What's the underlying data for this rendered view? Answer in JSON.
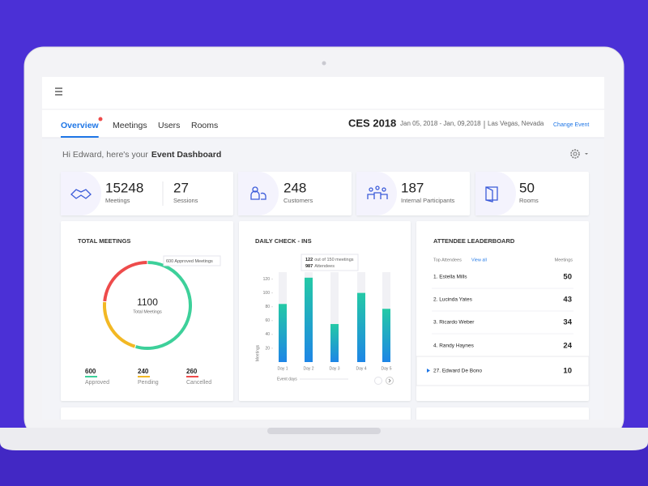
{
  "nav": {
    "tabs": [
      "Overview",
      "Meetings",
      "Users",
      "Rooms"
    ],
    "active": 0
  },
  "event": {
    "name": "CES 2018",
    "dates": "Jan 05, 2018 - Jan, 09,2018",
    "location": "Las Vegas, Nevada",
    "change": "Change Event"
  },
  "greeting": {
    "text": "Hi Edward, here's your",
    "emphasis": "Event Dashboard"
  },
  "stats": [
    {
      "items": [
        {
          "value": 15248,
          "label": "Meetings"
        },
        {
          "value": 27,
          "label": "Sessions"
        }
      ]
    },
    {
      "items": [
        {
          "value": 248,
          "label": "Customers"
        }
      ]
    },
    {
      "items": [
        {
          "value": 187,
          "label": "Internal Participants"
        }
      ]
    },
    {
      "items": [
        {
          "value": 50,
          "label": "Rooms"
        }
      ]
    }
  ],
  "total_meetings": {
    "title": "TOTAL MEETINGS",
    "total": 1100,
    "total_label": "Total Meetings",
    "tooltip": "600 Approved Meetings",
    "segments": [
      {
        "name": "Approved",
        "value": 600,
        "color": "#3dd09a"
      },
      {
        "name": "Pending",
        "value": 240,
        "color": "#f2b824"
      },
      {
        "name": "Cancelled",
        "value": 260,
        "color": "#ee4b4b"
      }
    ]
  },
  "daily_checkins": {
    "type": "bar",
    "title": "DAILY CHECK - INS",
    "categories": [
      "Day 1",
      "Day 2",
      "Day 3",
      "Day 4",
      "Day 5"
    ],
    "values": [
      84,
      122,
      55,
      100,
      77
    ],
    "colors": [
      "#24c9a6",
      "#1e86e6"
    ],
    "ylim": [
      0,
      130
    ],
    "yticks": [
      20,
      40,
      60,
      80,
      100,
      120
    ],
    "y_label": "Meetings",
    "x_label": "Event days",
    "tooltip": {
      "count": 122,
      "of": "out of 150 meetings",
      "attendees": 987,
      "attendees_label": "Attendees"
    }
  },
  "leaderboard": {
    "title": "ATTENDEE LEADERBOARD",
    "columns": [
      "Top Attendees",
      "View all",
      "Meetings"
    ],
    "rows": [
      [
        "1. Estella Mills",
        50
      ],
      [
        "2. Lucinda Yates",
        43
      ],
      [
        "3. Ricardo Weber",
        34
      ],
      [
        "4. Randy Haynes",
        24
      ],
      [
        "27. Edward De Bono",
        10
      ]
    ],
    "highlight": 4
  }
}
